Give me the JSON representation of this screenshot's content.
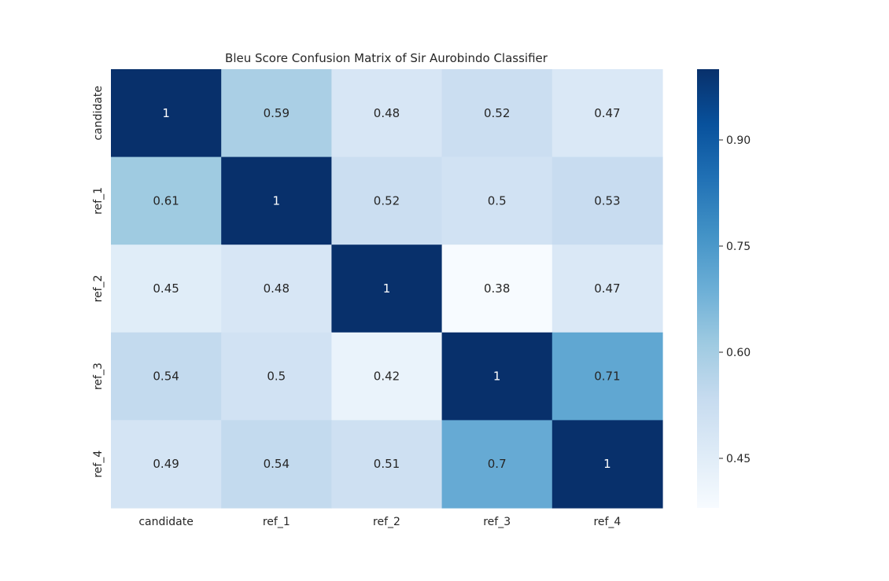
{
  "chart_data": {
    "type": "heatmap",
    "title": "Bleu Score Confusion Matrix of Sir Aurobindo Classifier",
    "xlabel": "",
    "ylabel": "",
    "x_categories": [
      "candidate",
      "ref_1",
      "ref_2",
      "ref_3",
      "ref_4"
    ],
    "y_categories": [
      "candidate",
      "ref_1",
      "ref_2",
      "ref_3",
      "ref_4"
    ],
    "values": [
      [
        1,
        0.59,
        0.48,
        0.52,
        0.47
      ],
      [
        0.61,
        1,
        0.52,
        0.5,
        0.53
      ],
      [
        0.45,
        0.48,
        1,
        0.38,
        0.47
      ],
      [
        0.54,
        0.5,
        0.42,
        1,
        0.71
      ],
      [
        0.49,
        0.54,
        0.51,
        0.7,
        1
      ]
    ],
    "colorbar": {
      "cmap": "Blues",
      "vmin": 0.38,
      "vmax": 1.0,
      "ticks": [
        0.45,
        0.6,
        0.75,
        0.9
      ],
      "tick_labels": [
        "0.45",
        "0.60",
        "0.75",
        "0.90"
      ]
    }
  }
}
